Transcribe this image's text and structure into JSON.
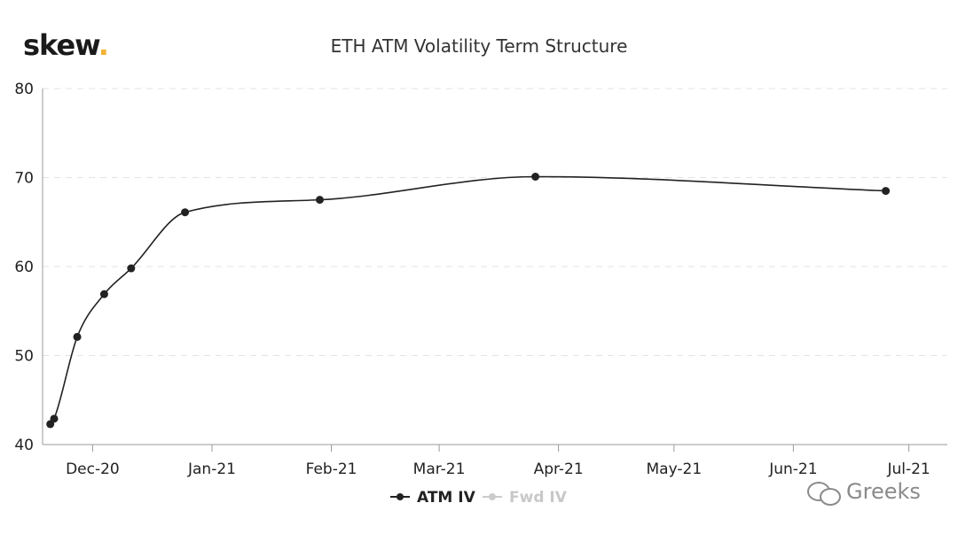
{
  "brand": {
    "name": "skew",
    "dot": "."
  },
  "watermark": {
    "text": "Greeks",
    "icon": "wechat-icon"
  },
  "chart_data": {
    "type": "line",
    "title": "ETH ATM Volatility Term Structure",
    "xlabel": "",
    "ylabel": "",
    "x_axis_type": "date",
    "xlim": [
      "2020-11-18",
      "2021-07-11"
    ],
    "ylim": [
      40,
      80
    ],
    "yticks": [
      40,
      50,
      60,
      70,
      80
    ],
    "xticks": [
      {
        "label": "Dec-20",
        "date": "2020-12-01"
      },
      {
        "label": "Jan-21",
        "date": "2021-01-01"
      },
      {
        "label": "Feb-21",
        "date": "2021-02-01"
      },
      {
        "label": "Mar-21",
        "date": "2021-03-01"
      },
      {
        "label": "Apr-21",
        "date": "2021-04-01"
      },
      {
        "label": "May-21",
        "date": "2021-05-01"
      },
      {
        "label": "Jun-21",
        "date": "2021-06-01"
      },
      {
        "label": "Jul-21",
        "date": "2021-07-01"
      }
    ],
    "grid": {
      "horizontal": true,
      "style": "dashed"
    },
    "legend_position": "bottom-center",
    "series": [
      {
        "name": "ATM IV",
        "color": "#222222",
        "visible": true,
        "points": [
          {
            "x": "2020-11-20",
            "y": 42.3
          },
          {
            "x": "2020-11-21",
            "y": 42.9
          },
          {
            "x": "2020-11-27",
            "y": 52.1
          },
          {
            "x": "2020-12-04",
            "y": 56.9
          },
          {
            "x": "2020-12-11",
            "y": 59.8
          },
          {
            "x": "2020-12-25",
            "y": 66.1
          },
          {
            "x": "2021-01-29",
            "y": 67.5
          },
          {
            "x": "2021-03-26",
            "y": 70.1
          },
          {
            "x": "2021-06-25",
            "y": 68.5
          }
        ]
      },
      {
        "name": "Fwd IV",
        "color": "#cccccc",
        "visible": false,
        "points": []
      }
    ]
  }
}
